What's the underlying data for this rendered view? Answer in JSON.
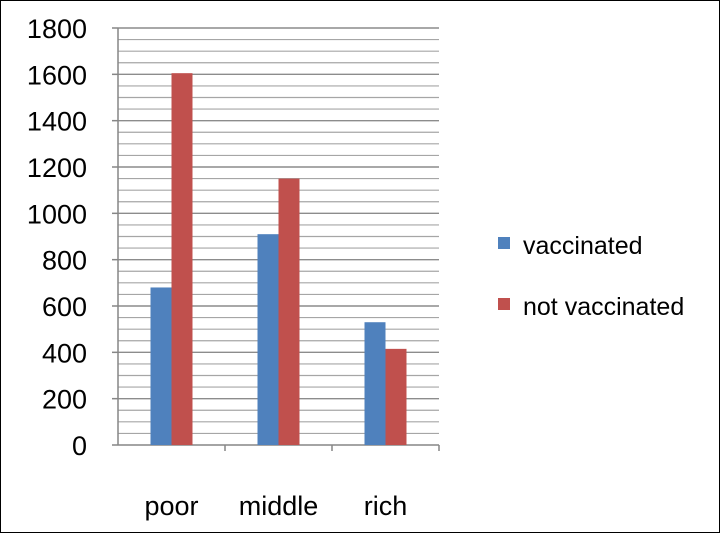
{
  "chart_data": {
    "type": "bar",
    "categories": [
      "poor",
      "middle",
      "rich"
    ],
    "series": [
      {
        "name": "vaccinated",
        "values": [
          680,
          910,
          530
        ],
        "color": "#4f81bd"
      },
      {
        "name": "not vaccinated",
        "values": [
          1605,
          1150,
          415
        ],
        "color": "#c0504d"
      }
    ],
    "ylim": [
      0,
      1800
    ],
    "yticks": [
      0,
      200,
      400,
      600,
      800,
      1000,
      1200,
      1400,
      1600,
      1800
    ],
    "ytick_labels": [
      "0",
      "200",
      "400",
      "600",
      "800",
      "1000",
      "1200",
      "1400",
      "1600",
      "1800"
    ],
    "grid": true,
    "minor_grid": true,
    "legend_position": "right"
  }
}
